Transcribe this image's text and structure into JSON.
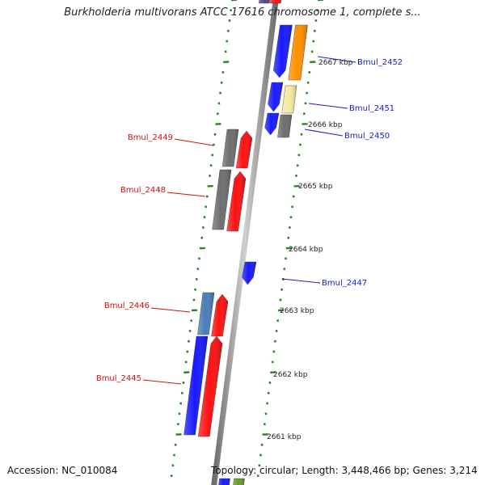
{
  "title": "Burkholderia multivorans ATCC 17616 chromosome 1, complete s...",
  "footer": {
    "accession": "Accession: NC_010084",
    "topology": "Topology: circular; Length: 3,448,466 bp; Genes: 3,214"
  },
  "colors": {
    "tick": "#228822",
    "scale_label": "#222222",
    "forward_label": "#1a1acc",
    "reverse_label": "#cc1111",
    "cds_forward": "#1a1aff",
    "cds_reverse": "#ff1111",
    "gene_gray": "#6e6e6e",
    "gene_orange": "#ff9000",
    "gene_pale_yellow": "#f5eaa0",
    "gene_steel_blue": "#4b7db8",
    "gene_olive": "#6a9a2a",
    "gene_purple": "#554488"
  },
  "scale_labels": [
    "2667 kbp",
    "2666 kbp",
    "2665 kbp",
    "2664 kbp",
    "2663 kbp",
    "2662 kbp",
    "2661 kbp"
  ],
  "gene_labels": [
    {
      "text": "Bmul_2452",
      "strand": "forward"
    },
    {
      "text": "Bmul_2451",
      "strand": "forward"
    },
    {
      "text": "Bmul_2450",
      "strand": "forward"
    },
    {
      "text": "Bmul_2449",
      "strand": "reverse"
    },
    {
      "text": "Bmul_2448",
      "strand": "reverse"
    },
    {
      "text": "Bmul_2447",
      "strand": "forward"
    },
    {
      "text": "Bmul_2446",
      "strand": "reverse"
    },
    {
      "text": "Bmul_2445",
      "strand": "reverse"
    }
  ]
}
